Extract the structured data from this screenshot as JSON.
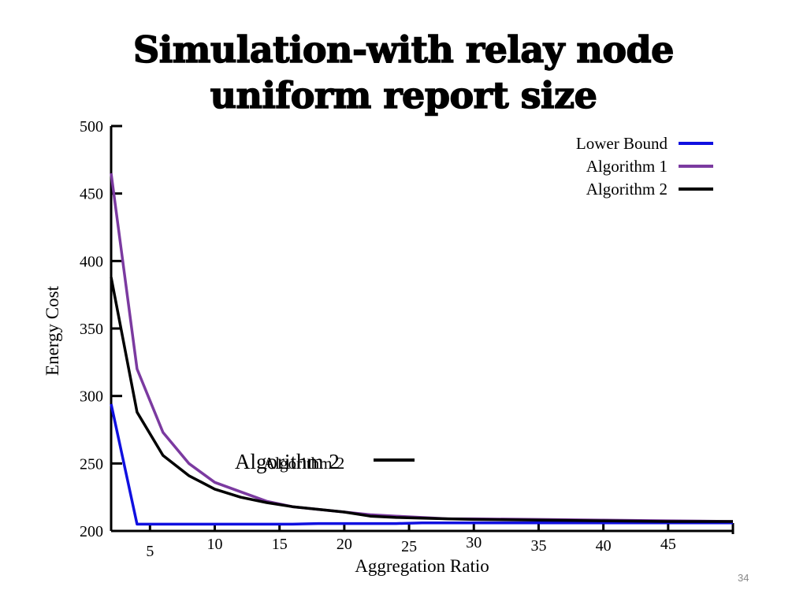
{
  "slide": {
    "title_line1": "Simulation-with relay node",
    "title_line2": "uniform report size",
    "page_number": "34"
  },
  "colors": {
    "lower_bound": "#1010e0",
    "algorithm1": "#7b3aa0",
    "algorithm2": "#000000",
    "axis": "#000000"
  },
  "overlap_label": {
    "large": "Algorithm 2",
    "small": "Algorithm 2"
  },
  "chart_data": {
    "type": "line",
    "xlabel": "Aggregation Ratio",
    "ylabel": "Energy Cost",
    "xlim": [
      2,
      50
    ],
    "ylim": [
      200,
      500
    ],
    "x_ticks": [
      5,
      10,
      15,
      20,
      25,
      30,
      35,
      40,
      45
    ],
    "y_ticks": [
      200,
      250,
      300,
      350,
      400,
      450,
      500
    ],
    "grid": false,
    "legend_position": "top-right",
    "x": [
      2,
      4,
      6,
      8,
      10,
      12,
      14,
      16,
      18,
      20,
      22,
      24,
      26,
      28,
      30,
      35,
      40,
      45,
      50
    ],
    "series": [
      {
        "name": "Lower Bound",
        "color": "#1010e0",
        "values": [
          294,
          205,
          205,
          205,
          205,
          205,
          205,
          205,
          205.5,
          205.5,
          205.5,
          205.5,
          206,
          206,
          206,
          206,
          206,
          206,
          206
        ]
      },
      {
        "name": "Algorithm 1",
        "color": "#7b3aa0",
        "values": [
          465,
          320,
          273,
          250,
          236,
          229,
          222,
          218,
          216,
          214,
          212,
          211,
          210,
          209,
          209,
          208.5,
          208,
          207.5,
          207
        ]
      },
      {
        "name": "Algorithm 2",
        "color": "#000000",
        "values": [
          388,
          288,
          256,
          241,
          231,
          225,
          221,
          218,
          216,
          214,
          211,
          210,
          209.5,
          209,
          208.5,
          208,
          207.5,
          207,
          207
        ]
      }
    ]
  }
}
